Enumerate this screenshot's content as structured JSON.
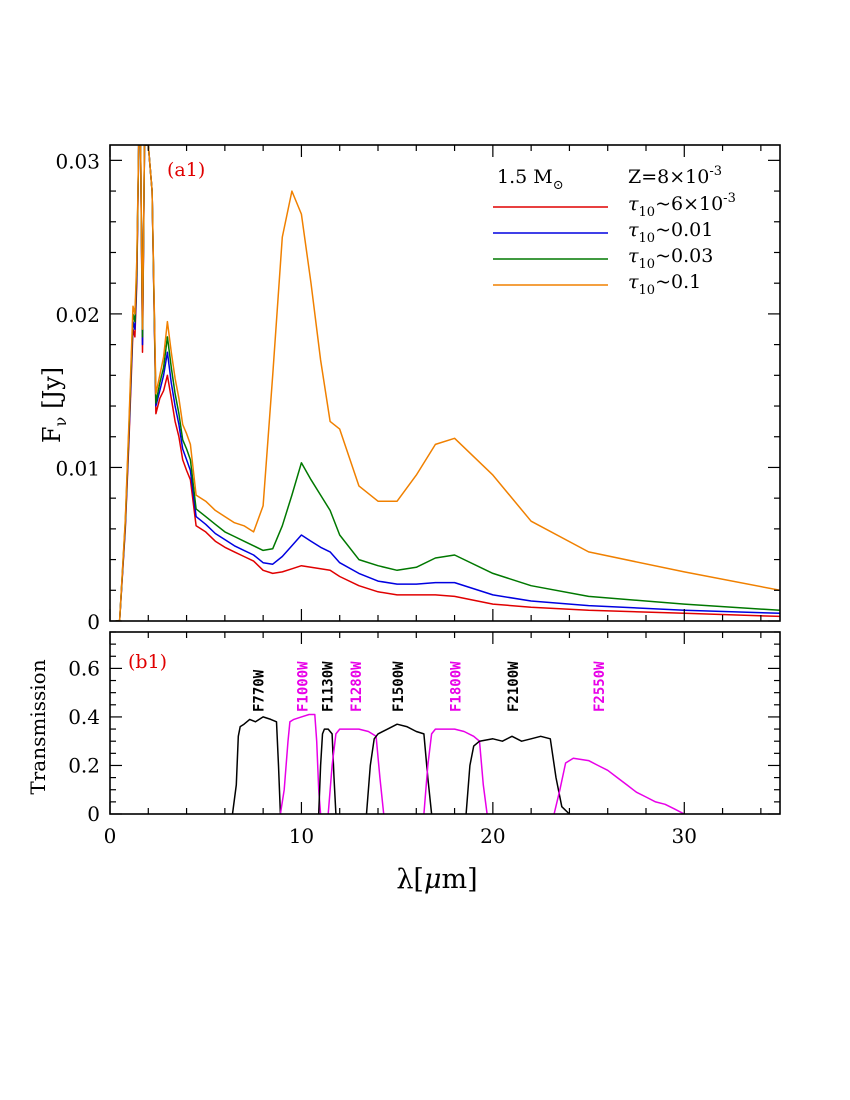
{
  "chart_data": [
    {
      "id": "a1",
      "type": "line",
      "panel_label": "(a1)",
      "ylabel": "F_ν [Jy]",
      "ylabel_main": "F",
      "ylabel_sub": "ν",
      "ylabel_unit": "[Jy]",
      "xlim": [
        0,
        35
      ],
      "ylim": [
        0,
        0.031
      ],
      "y_ticks": [
        0,
        0.01,
        0.02,
        0.03
      ],
      "y_tick_labels": [
        "0",
        "0.01",
        "0.02",
        "0.03"
      ],
      "legend_position": "top-right",
      "legend_header_left": "1.5 M",
      "legend_header_left_sub": "⊙",
      "legend_header_right": "Z=8×10",
      "legend_header_right_sup": "-3",
      "series": [
        {
          "name": "τ10~6×10-3",
          "legend_pre": "τ",
          "legend_sub": "10",
          "legend_main": "~6×10",
          "legend_sup": "-3",
          "color": "#e00000",
          "x": [
            0.3,
            0.5,
            0.8,
            1.0,
            1.2,
            1.3,
            1.4,
            1.5,
            1.6,
            1.7,
            1.8,
            2.0,
            2.2,
            2.4,
            2.6,
            2.8,
            3.0,
            3.2,
            3.4,
            3.6,
            3.8,
            4.0,
            4.2,
            4.5,
            5.0,
            5.5,
            6.0,
            6.5,
            7.0,
            7.5,
            8.0,
            8.5,
            9.0,
            9.5,
            10.0,
            10.5,
            11.0,
            11.5,
            12.0,
            13.0,
            14.0,
            15.0,
            16.0,
            17.0,
            18.0,
            20.0,
            22.0,
            25.0,
            30.0,
            35.0
          ],
          "y": [
            0,
            0,
            0.006,
            0.012,
            0.019,
            0.0185,
            0.022,
            0.031,
            0.031,
            0.0175,
            0.031,
            0.031,
            0.028,
            0.0135,
            0.0145,
            0.015,
            0.016,
            0.0145,
            0.013,
            0.012,
            0.0105,
            0.0098,
            0.0092,
            0.0062,
            0.0058,
            0.0052,
            0.0048,
            0.0045,
            0.0042,
            0.0039,
            0.0033,
            0.0031,
            0.0032,
            0.0034,
            0.0036,
            0.0035,
            0.0034,
            0.0033,
            0.0029,
            0.0023,
            0.0019,
            0.0017,
            0.0017,
            0.0017,
            0.0016,
            0.0011,
            0.0009,
            0.0007,
            0.0005,
            0.0003
          ]
        },
        {
          "name": "τ10~0.01",
          "legend_pre": "τ",
          "legend_sub": "10",
          "legend_main": "~0.01",
          "legend_sup": "",
          "color": "#0000e0",
          "x": [
            0.3,
            0.5,
            0.8,
            1.0,
            1.2,
            1.3,
            1.4,
            1.5,
            1.6,
            1.7,
            1.8,
            2.0,
            2.2,
            2.4,
            2.6,
            2.8,
            3.0,
            3.2,
            3.4,
            3.6,
            3.8,
            4.0,
            4.2,
            4.5,
            5.0,
            5.5,
            6.0,
            6.5,
            7.0,
            7.5,
            8.0,
            8.5,
            9.0,
            9.5,
            10.0,
            10.5,
            11.0,
            11.5,
            12.0,
            13.0,
            14.0,
            15.0,
            16.0,
            17.0,
            18.0,
            20.0,
            22.0,
            25.0,
            30.0,
            35.0
          ],
          "y": [
            0,
            0,
            0.0062,
            0.0124,
            0.0195,
            0.019,
            0.0225,
            0.031,
            0.031,
            0.018,
            0.031,
            0.031,
            0.028,
            0.014,
            0.015,
            0.016,
            0.0175,
            0.0155,
            0.014,
            0.0128,
            0.0112,
            0.0105,
            0.0098,
            0.0068,
            0.0063,
            0.0057,
            0.0053,
            0.0049,
            0.0046,
            0.0043,
            0.0038,
            0.0037,
            0.0042,
            0.0049,
            0.0056,
            0.0052,
            0.0048,
            0.0045,
            0.0038,
            0.0031,
            0.0026,
            0.0024,
            0.0024,
            0.0025,
            0.0025,
            0.0017,
            0.0013,
            0.001,
            0.0007,
            0.0005
          ]
        },
        {
          "name": "τ10~0.03",
          "legend_pre": "τ",
          "legend_sub": "10",
          "legend_main": "~0.03",
          "legend_sup": "",
          "color": "#007800",
          "x": [
            0.3,
            0.5,
            0.8,
            1.0,
            1.2,
            1.3,
            1.4,
            1.5,
            1.6,
            1.7,
            1.8,
            2.0,
            2.2,
            2.4,
            2.6,
            2.8,
            3.0,
            3.2,
            3.4,
            3.6,
            3.8,
            4.0,
            4.2,
            4.5,
            5.0,
            5.5,
            6.0,
            6.5,
            7.0,
            7.5,
            8.0,
            8.5,
            9.0,
            9.5,
            10.0,
            10.5,
            11.0,
            11.5,
            12.0,
            13.0,
            14.0,
            15.0,
            16.0,
            17.0,
            18.0,
            20.0,
            22.0,
            25.0,
            30.0,
            35.0
          ],
          "y": [
            0,
            0,
            0.0064,
            0.0128,
            0.02,
            0.0195,
            0.023,
            0.031,
            0.031,
            0.0185,
            0.031,
            0.031,
            0.028,
            0.0142,
            0.0155,
            0.0165,
            0.0185,
            0.0165,
            0.0148,
            0.0135,
            0.0118,
            0.0112,
            0.0105,
            0.0073,
            0.0068,
            0.0063,
            0.0058,
            0.0055,
            0.0052,
            0.0049,
            0.0046,
            0.0047,
            0.0062,
            0.0082,
            0.0103,
            0.0092,
            0.0082,
            0.0072,
            0.0056,
            0.004,
            0.0036,
            0.0033,
            0.0035,
            0.0041,
            0.0043,
            0.0031,
            0.0023,
            0.0016,
            0.0011,
            0.0007
          ]
        },
        {
          "name": "τ10~0.1",
          "legend_pre": "τ",
          "legend_sub": "10",
          "legend_main": "~0.1",
          "legend_sup": "",
          "color": "#f08000",
          "x": [
            0.3,
            0.5,
            0.8,
            1.0,
            1.2,
            1.3,
            1.4,
            1.5,
            1.6,
            1.7,
            1.8,
            2.0,
            2.2,
            2.4,
            2.6,
            2.8,
            3.0,
            3.2,
            3.4,
            3.6,
            3.8,
            4.0,
            4.2,
            4.5,
            5.0,
            5.5,
            6.0,
            6.5,
            7.0,
            7.5,
            8.0,
            8.5,
            9.0,
            9.5,
            10.0,
            10.5,
            11.0,
            11.5,
            12.0,
            13.0,
            14.0,
            15.0,
            16.0,
            17.0,
            18.0,
            20.0,
            22.0,
            25.0,
            30.0,
            35.0
          ],
          "y": [
            0,
            0,
            0.0066,
            0.0132,
            0.0205,
            0.02,
            0.0235,
            0.031,
            0.031,
            0.019,
            0.031,
            0.031,
            0.028,
            0.0148,
            0.016,
            0.0172,
            0.0195,
            0.0175,
            0.0158,
            0.0145,
            0.0128,
            0.0122,
            0.0115,
            0.0082,
            0.0078,
            0.0072,
            0.0068,
            0.0064,
            0.0062,
            0.0058,
            0.0075,
            0.016,
            0.025,
            0.028,
            0.0265,
            0.022,
            0.017,
            0.013,
            0.0125,
            0.0088,
            0.0078,
            0.0078,
            0.0095,
            0.0115,
            0.0119,
            0.0095,
            0.0065,
            0.0045,
            0.0032,
            0.002
          ]
        }
      ]
    },
    {
      "id": "b1",
      "type": "line",
      "panel_label": "(b1)",
      "ylabel": "Transmission",
      "xlabel": "λ[μm]",
      "xlabel_pre": "λ[",
      "xlabel_mu": "μ",
      "xlabel_post": "m]",
      "xlim": [
        0,
        35
      ],
      "ylim": [
        0,
        0.75
      ],
      "x_ticks": [
        0,
        10,
        20,
        30
      ],
      "x_tick_labels": [
        "0",
        "10",
        "20",
        "30"
      ],
      "y_ticks": [
        0,
        0.2,
        0.4,
        0.6
      ],
      "y_tick_labels": [
        "0",
        "0.2",
        "0.4",
        "0.6"
      ],
      "filters": [
        {
          "name": "F770W",
          "color": "#000000",
          "label_x": 7.7,
          "x": [
            6.4,
            6.6,
            6.7,
            6.8,
            7.0,
            7.3,
            7.6,
            8.0,
            8.4,
            8.7,
            8.8,
            8.9
          ],
          "y": [
            0,
            0.12,
            0.32,
            0.36,
            0.37,
            0.39,
            0.38,
            0.4,
            0.39,
            0.38,
            0.2,
            0
          ]
        },
        {
          "name": "F1000W",
          "color": "#e800e8",
          "label_x": 10.0,
          "x": [
            8.9,
            9.1,
            9.3,
            9.4,
            9.6,
            10.0,
            10.4,
            10.7,
            10.8,
            10.9,
            11.0
          ],
          "y": [
            0,
            0.1,
            0.3,
            0.38,
            0.39,
            0.4,
            0.41,
            0.41,
            0.3,
            0.1,
            0
          ]
        },
        {
          "name": "F1130W",
          "color": "#000000",
          "label_x": 11.3,
          "x": [
            10.9,
            11.0,
            11.1,
            11.2,
            11.4,
            11.6,
            11.7,
            11.8
          ],
          "y": [
            0,
            0.2,
            0.33,
            0.35,
            0.35,
            0.33,
            0.15,
            0
          ]
        },
        {
          "name": "F1280W",
          "color": "#e800e8",
          "label_x": 12.8,
          "x": [
            11.4,
            11.6,
            11.8,
            12.0,
            12.5,
            13.0,
            13.5,
            13.9,
            14.1,
            14.3
          ],
          "y": [
            0,
            0.2,
            0.33,
            0.35,
            0.35,
            0.35,
            0.34,
            0.32,
            0.15,
            0
          ]
        },
        {
          "name": "F1500W",
          "color": "#000000",
          "label_x": 15.0,
          "x": [
            13.4,
            13.6,
            13.8,
            14.0,
            14.5,
            15.0,
            15.5,
            16.0,
            16.4,
            16.6,
            16.8
          ],
          "y": [
            0,
            0.2,
            0.31,
            0.33,
            0.35,
            0.37,
            0.36,
            0.34,
            0.33,
            0.15,
            0
          ]
        },
        {
          "name": "F1800W",
          "color": "#e800e8",
          "label_x": 18.0,
          "x": [
            16.4,
            16.6,
            16.8,
            17.0,
            17.5,
            18.0,
            18.5,
            19.0,
            19.3,
            19.5,
            19.7
          ],
          "y": [
            0,
            0.2,
            0.33,
            0.35,
            0.35,
            0.35,
            0.34,
            0.32,
            0.3,
            0.12,
            0
          ]
        },
        {
          "name": "F2100W",
          "color": "#000000",
          "label_x": 21.0,
          "x": [
            18.6,
            18.8,
            19.0,
            19.3,
            20.0,
            20.5,
            21.0,
            21.5,
            22.0,
            22.5,
            23.0,
            23.3,
            23.6,
            24.0
          ],
          "y": [
            0,
            0.2,
            0.28,
            0.3,
            0.31,
            0.3,
            0.32,
            0.3,
            0.31,
            0.32,
            0.31,
            0.15,
            0.03,
            0
          ]
        },
        {
          "name": "F2550W",
          "color": "#e800e8",
          "label_x": 25.5,
          "x": [
            23.2,
            23.5,
            23.8,
            24.2,
            25.0,
            25.5,
            26.0,
            26.5,
            27.0,
            27.5,
            28.0,
            28.5,
            29.0,
            29.5,
            30.0
          ],
          "y": [
            0,
            0.1,
            0.21,
            0.23,
            0.22,
            0.2,
            0.18,
            0.15,
            0.12,
            0.09,
            0.07,
            0.05,
            0.04,
            0.02,
            0
          ]
        }
      ]
    }
  ]
}
